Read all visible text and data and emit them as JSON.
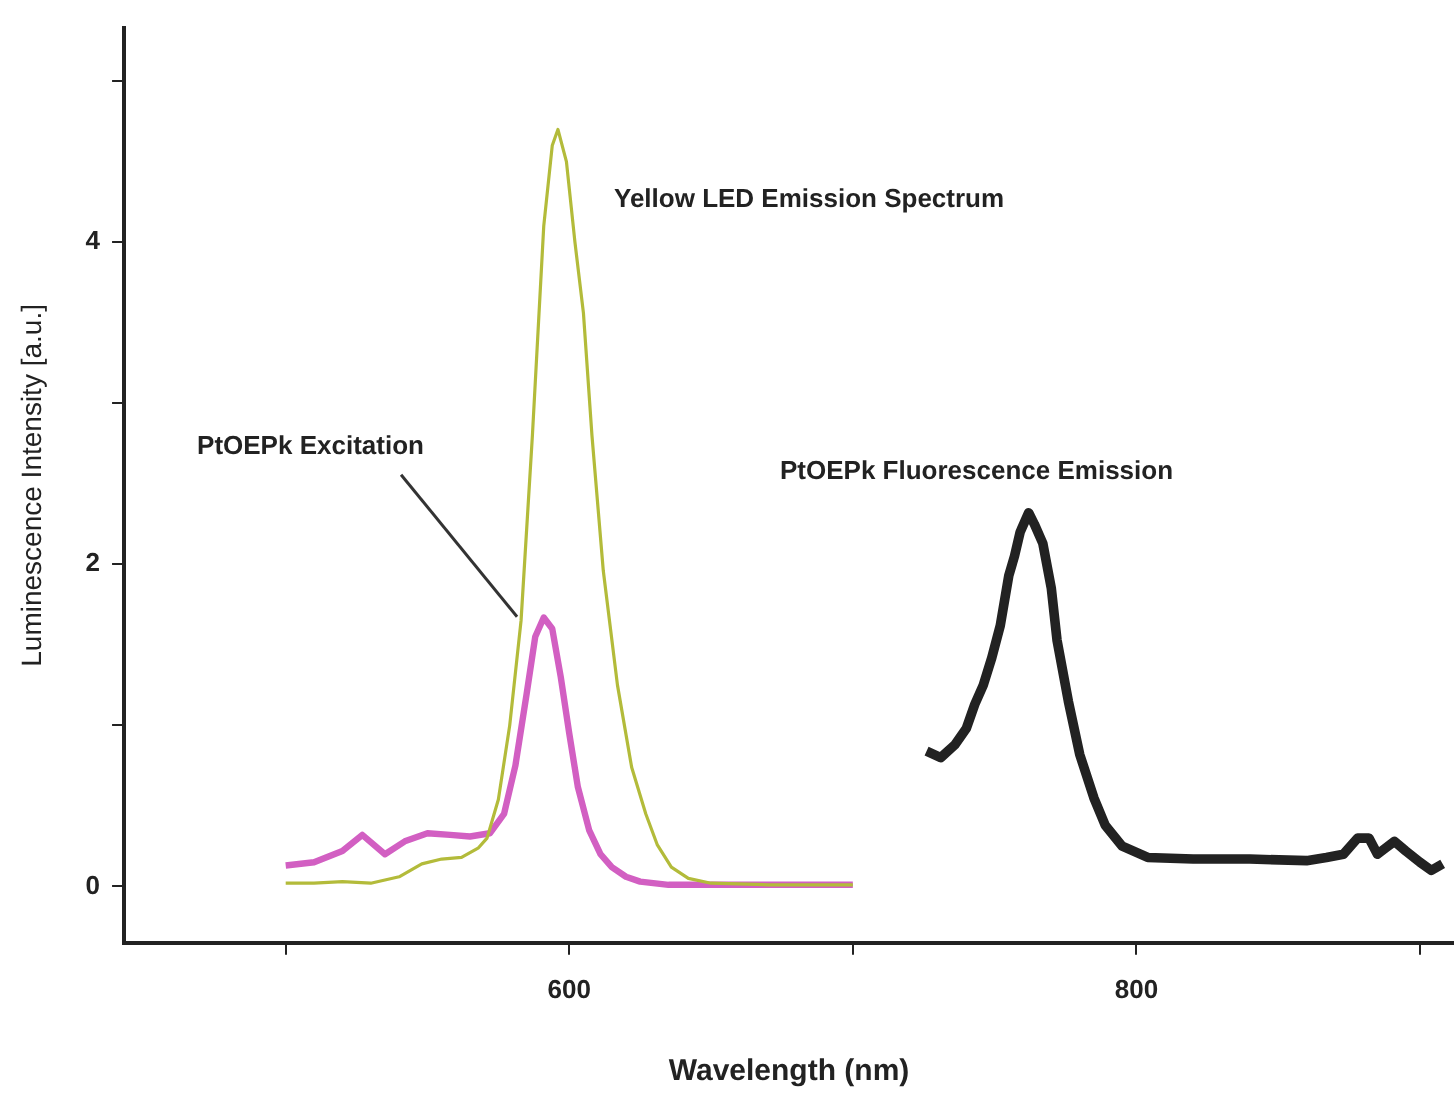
{
  "chart_data": {
    "type": "line",
    "xlabel": "Wavelength (nm)",
    "ylabel": "Luminescence Intensity [a.u.]",
    "xlim": [
      443,
      912
    ],
    "ylim": [
      -0.35,
      5.33
    ],
    "xticks": [
      {
        "value": 500,
        "label": null
      },
      600,
      {
        "value": 700,
        "label": null
      },
      800,
      {
        "value": 900,
        "label": null
      }
    ],
    "yticks": [
      0,
      {
        "value": 1,
        "label": null
      },
      2,
      {
        "value": 3,
        "label": null
      },
      4,
      {
        "value": 5,
        "label": null
      }
    ],
    "grid": false,
    "legend": false,
    "marker": "none",
    "line_style": "solid",
    "series": [
      {
        "color": "#b3bb3a",
        "x": [
          500,
          510,
          520,
          530,
          540,
          548,
          555,
          562,
          568,
          571,
          575,
          579,
          583,
          587,
          591,
          594,
          596,
          599,
          602,
          605,
          608,
          612,
          617,
          622,
          627,
          631,
          636,
          642,
          650,
          670,
          700
        ],
        "values": [
          0.02,
          0.02,
          0.03,
          0.02,
          0.06,
          0.14,
          0.17,
          0.18,
          0.24,
          0.3,
          0.54,
          1.0,
          1.65,
          2.8,
          4.1,
          4.6,
          4.7,
          4.5,
          4.0,
          3.56,
          2.8,
          1.96,
          1.25,
          0.74,
          0.45,
          0.26,
          0.12,
          0.05,
          0.02,
          0.01,
          0.01
        ]
      },
      {
        "color": "#d25fc2",
        "x": [
          500,
          510,
          520,
          527,
          535,
          542,
          550,
          558,
          565,
          572,
          577,
          581,
          585,
          588,
          591,
          594,
          597,
          600,
          603,
          607,
          611,
          615,
          620,
          625,
          635,
          650,
          670,
          700
        ],
        "values": [
          0.13,
          0.15,
          0.22,
          0.32,
          0.2,
          0.28,
          0.33,
          0.32,
          0.31,
          0.33,
          0.45,
          0.75,
          1.2,
          1.55,
          1.67,
          1.6,
          1.3,
          0.95,
          0.62,
          0.35,
          0.2,
          0.12,
          0.06,
          0.03,
          0.01,
          0.01,
          0.01,
          0.01
        ]
      },
      {
        "color": "#222222",
        "x": [
          726,
          731,
          736,
          740,
          743,
          746,
          749,
          752,
          755,
          757,
          759,
          762,
          764,
          767,
          770,
          772,
          776,
          780,
          785,
          789,
          795,
          804,
          820,
          840,
          860,
          867,
          873,
          878,
          882,
          885,
          888,
          891,
          895,
          900,
          904,
          908
        ],
        "values": [
          0.84,
          0.8,
          0.88,
          0.98,
          1.13,
          1.25,
          1.42,
          1.62,
          1.93,
          2.05,
          2.2,
          2.32,
          2.25,
          2.13,
          1.85,
          1.53,
          1.15,
          0.82,
          0.55,
          0.38,
          0.25,
          0.18,
          0.17,
          0.17,
          0.16,
          0.18,
          0.2,
          0.3,
          0.3,
          0.2,
          0.24,
          0.28,
          0.22,
          0.15,
          0.1,
          0.14
        ]
      }
    ],
    "annotations": [
      "Yellow LED Emission Spectrum",
      {
        "text": "PtOEPk Excitation",
        "x": 583,
        "y": 1.65
      },
      "PtOEPk Fluorescence Emission"
    ]
  }
}
